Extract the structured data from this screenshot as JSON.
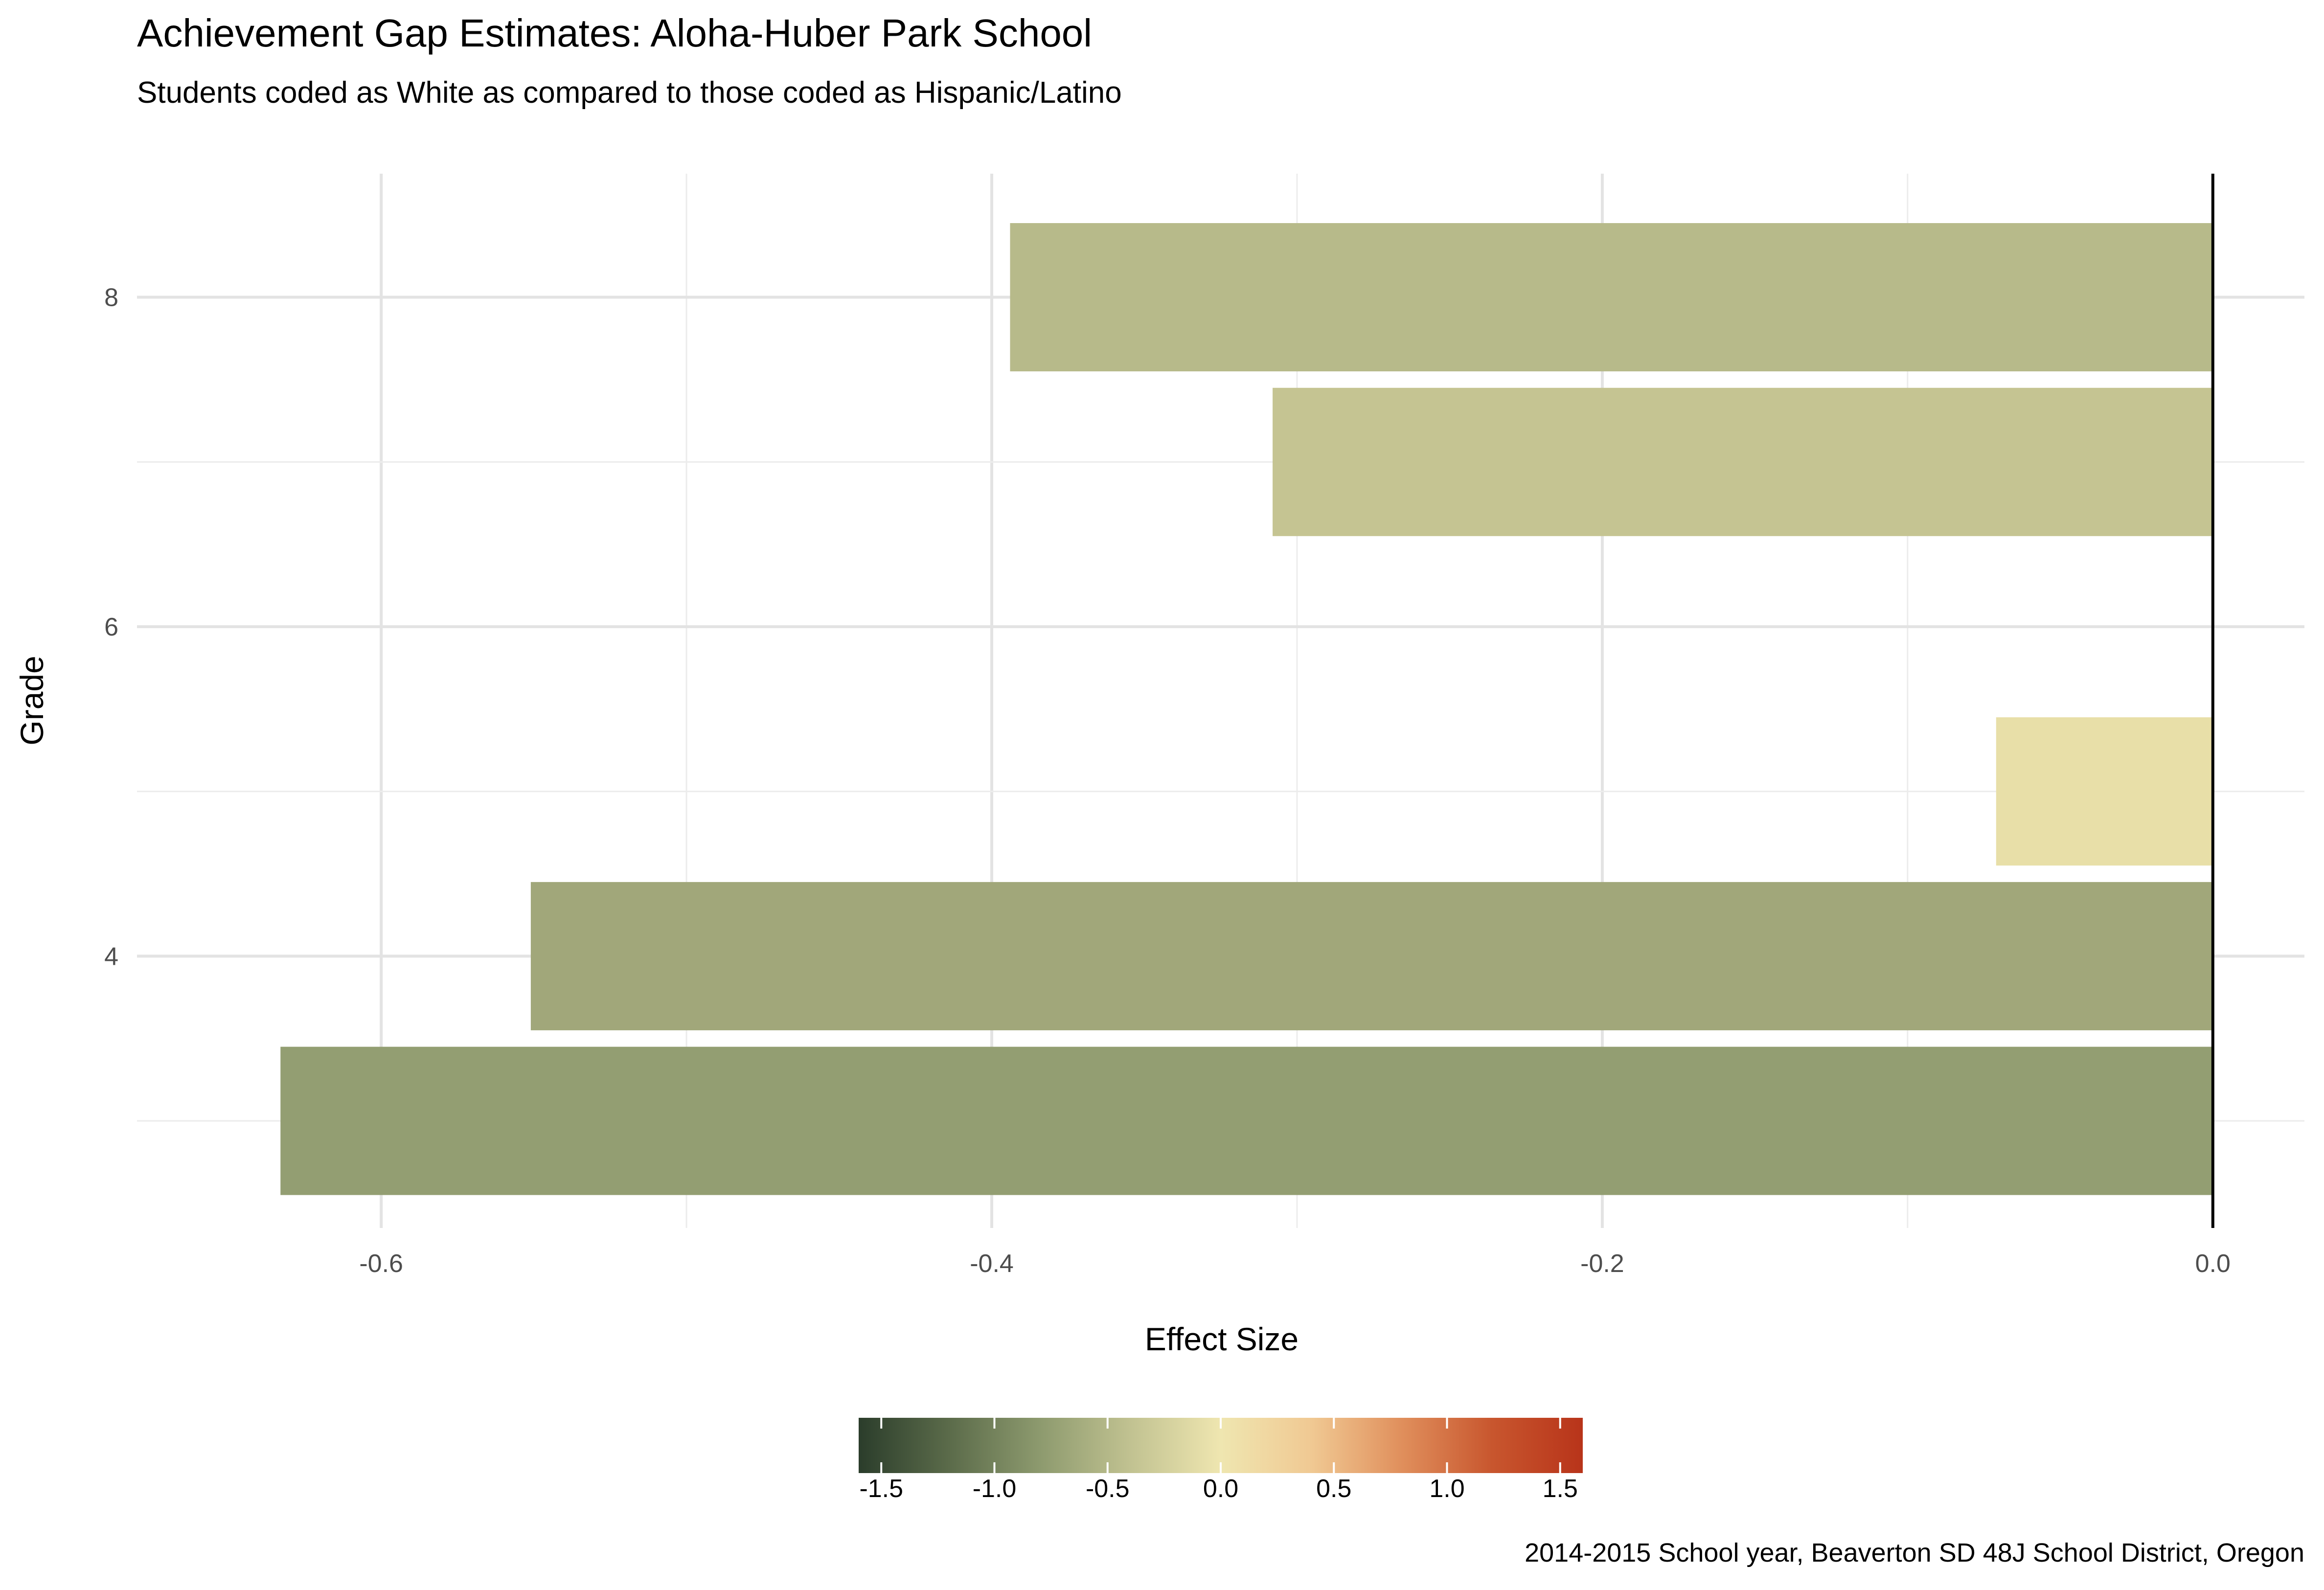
{
  "chart_data": {
    "type": "bar",
    "orientation": "horizontal",
    "title": "Achievement Gap Estimates: Aloha-Huber Park School",
    "subtitle": "Students coded as White as compared to those coded as Hispanic/Latino",
    "caption": "2014-2015 School year, Beaverton SD 48J School District, Oregon",
    "xlabel": "Effect Size",
    "ylabel": "Grade",
    "xlim": [
      -0.68,
      0.03
    ],
    "ylim": [
      2.35,
      8.75
    ],
    "x_ticks": [
      {
        "value": -0.6,
        "label": "-0.6"
      },
      {
        "value": -0.4,
        "label": "-0.4"
      },
      {
        "value": -0.2,
        "label": "-0.2"
      },
      {
        "value": 0.0,
        "label": "0.0"
      }
    ],
    "y_ticks": [
      {
        "value": 4,
        "label": "4"
      },
      {
        "value": 6,
        "label": "6"
      },
      {
        "value": 8,
        "label": "8"
      }
    ],
    "grid": true,
    "bars": [
      {
        "grade": 3,
        "value": -0.633,
        "color": "#939e72"
      },
      {
        "grade": 4,
        "value": -0.551,
        "color": "#a1a77a"
      },
      {
        "grade": 5,
        "value": -0.071,
        "color": "#e8dfa8"
      },
      {
        "grade": 7,
        "value": -0.308,
        "color": "#c5c492"
      },
      {
        "grade": 8,
        "value": -0.394,
        "color": "#b7ba8a"
      }
    ],
    "legend": {
      "placement": "bottom",
      "range": [
        -1.6,
        1.6
      ],
      "ticks": [
        {
          "value": -1.5,
          "label": "-1.5"
        },
        {
          "value": -1.0,
          "label": "-1.0"
        },
        {
          "value": -0.5,
          "label": "-0.5"
        },
        {
          "value": 0.0,
          "label": "0.0"
        },
        {
          "value": 0.5,
          "label": "0.5"
        },
        {
          "value": 1.0,
          "label": "1.0"
        },
        {
          "value": 1.5,
          "label": "1.5"
        }
      ],
      "colors": [
        "#2b3d2b",
        "#5b6b4a",
        "#8d9a6e",
        "#c1c291",
        "#efe6b0",
        "#f0c993",
        "#e08f5c",
        "#c8562e",
        "#b8341a"
      ]
    }
  }
}
